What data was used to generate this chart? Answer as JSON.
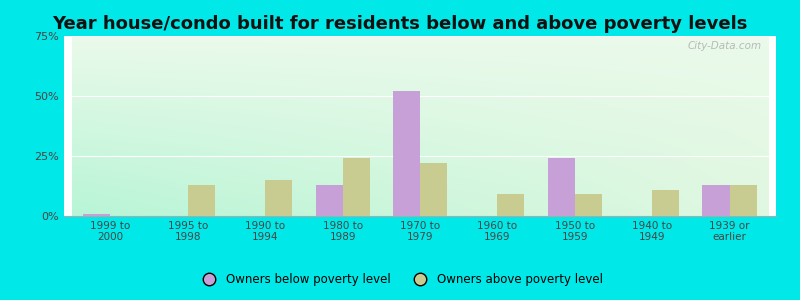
{
  "title": "Year house/condo built for residents below and above poverty levels",
  "categories": [
    "1999 to\n2000",
    "1995 to\n1998",
    "1990 to\n1994",
    "1980 to\n1989",
    "1970 to\n1979",
    "1960 to\n1969",
    "1950 to\n1959",
    "1940 to\n1949",
    "1939 or\nearlier"
  ],
  "below_poverty": [
    1.0,
    0.0,
    0.0,
    13.0,
    52.0,
    0.0,
    24.0,
    0.0,
    13.0
  ],
  "above_poverty": [
    0.0,
    13.0,
    15.0,
    24.0,
    22.0,
    9.0,
    9.0,
    11.0,
    13.0
  ],
  "below_color": "#c8a0d8",
  "above_color": "#c8cc90",
  "ylim": [
    0,
    75
  ],
  "yticks": [
    0,
    25,
    50,
    75
  ],
  "ytick_labels": [
    "0%",
    "25%",
    "50%",
    "75%"
  ],
  "outer_background": "#00e8e8",
  "title_fontsize": 13,
  "bar_width": 0.35,
  "legend_below_label": "Owners below poverty level",
  "legend_above_label": "Owners above poverty level"
}
